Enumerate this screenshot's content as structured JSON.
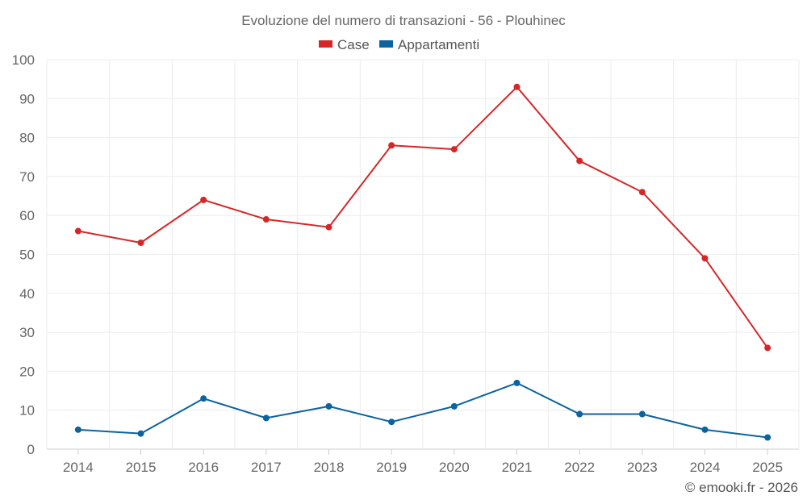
{
  "chart_data": {
    "type": "line",
    "title": "Evoluzione del numero di transazioni - 56 - Plouhinec",
    "categories": [
      "2014",
      "2015",
      "2016",
      "2017",
      "2018",
      "2019",
      "2020",
      "2021",
      "2022",
      "2023",
      "2024",
      "2025"
    ],
    "series": [
      {
        "name": "Case",
        "color": "#d62728",
        "values": [
          56,
          53,
          64,
          59,
          57,
          78,
          77,
          93,
          74,
          66,
          49,
          26
        ]
      },
      {
        "name": "Appartamenti",
        "color": "#0b63a0",
        "values": [
          5,
          4,
          13,
          8,
          11,
          7,
          11,
          17,
          9,
          9,
          5,
          3
        ]
      }
    ],
    "ylim": [
      0,
      100
    ],
    "yticks": [
      "0",
      "10",
      "20",
      "30",
      "40",
      "50",
      "60",
      "70",
      "80",
      "90",
      "100"
    ],
    "grid": true,
    "legend": "top-center"
  },
  "credit": "© emooki.fr - 2026"
}
